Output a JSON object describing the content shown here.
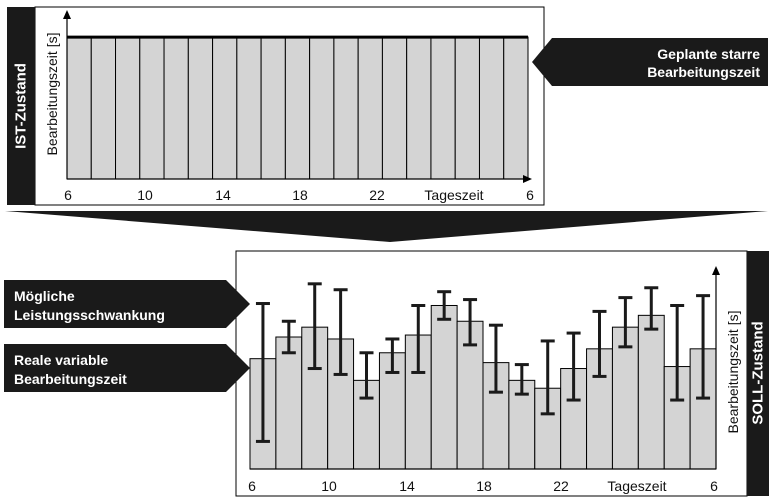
{
  "ist": {
    "state_label": "IST-Zustand",
    "ylabel": "Bearbeitungszeit [s]",
    "xlabel": "Tageszeit",
    "ticks": [
      "6",
      "10",
      "14",
      "18",
      "22",
      "6"
    ],
    "callout": {
      "line1": "Geplante starre",
      "line2": "Bearbeitungszeit"
    },
    "bar_count": 19,
    "bar_level": 0.86
  },
  "soll": {
    "state_label": "SOLL-Zustand",
    "ylabel": "Bearbeitungszeit [s]",
    "xlabel": "Tageszeit",
    "ticks": [
      "6",
      "10",
      "14",
      "18",
      "22",
      "6"
    ],
    "callout_top": {
      "line1": "Mögliche",
      "line2": "Leistungsschwankung"
    },
    "callout_bottom": {
      "line1": "Reale variable",
      "line2": "Bearbeitungszeit"
    },
    "bars": [
      {
        "v": 0.56,
        "lo": 0.14,
        "hi": 0.84
      },
      {
        "v": 0.67,
        "lo": 0.59,
        "hi": 0.75
      },
      {
        "v": 0.72,
        "lo": 0.51,
        "hi": 0.94
      },
      {
        "v": 0.66,
        "lo": 0.48,
        "hi": 0.91
      },
      {
        "v": 0.45,
        "lo": 0.36,
        "hi": 0.59
      },
      {
        "v": 0.59,
        "lo": 0.49,
        "hi": 0.66
      },
      {
        "v": 0.68,
        "lo": 0.49,
        "hi": 0.83
      },
      {
        "v": 0.83,
        "lo": 0.76,
        "hi": 0.9
      },
      {
        "v": 0.75,
        "lo": 0.63,
        "hi": 0.86
      },
      {
        "v": 0.54,
        "lo": 0.39,
        "hi": 0.73
      },
      {
        "v": 0.45,
        "lo": 0.38,
        "hi": 0.53
      },
      {
        "v": 0.41,
        "lo": 0.28,
        "hi": 0.65
      },
      {
        "v": 0.51,
        "lo": 0.35,
        "hi": 0.69
      },
      {
        "v": 0.61,
        "lo": 0.47,
        "hi": 0.8
      },
      {
        "v": 0.72,
        "lo": 0.62,
        "hi": 0.87
      },
      {
        "v": 0.78,
        "lo": 0.71,
        "hi": 0.92
      },
      {
        "v": 0.52,
        "lo": 0.35,
        "hi": 0.83
      },
      {
        "v": 0.61,
        "lo": 0.36,
        "hi": 0.88
      }
    ]
  },
  "colors": {
    "bar_fill": "#d4d4d4",
    "dark": "#1a1a1a",
    "callout_text": "#ffffff"
  }
}
